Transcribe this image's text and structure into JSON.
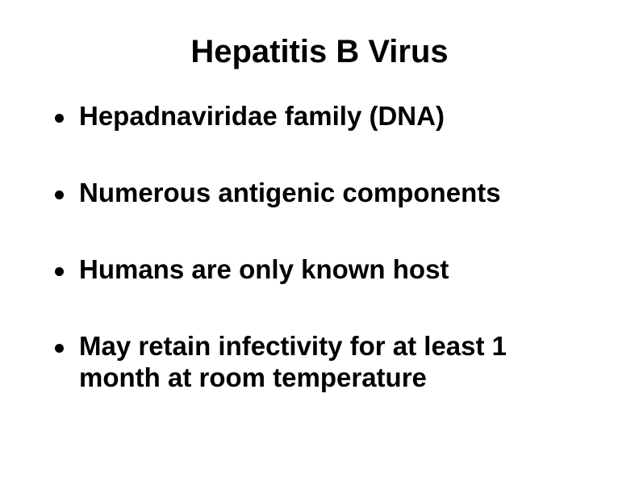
{
  "slide": {
    "title": "Hepatitis B Virus",
    "bullets": [
      "Hepadnaviridae family (DNA)",
      "Numerous antigenic components",
      "Humans are only known host",
      "May retain infectivity for at least 1 month at room temperature"
    ],
    "colors": {
      "background": "#ffffff",
      "text": "#000000"
    },
    "typography": {
      "title_fontsize": 40,
      "bullet_fontsize": 33,
      "font_family": "Arial",
      "font_weight": "bold"
    }
  }
}
